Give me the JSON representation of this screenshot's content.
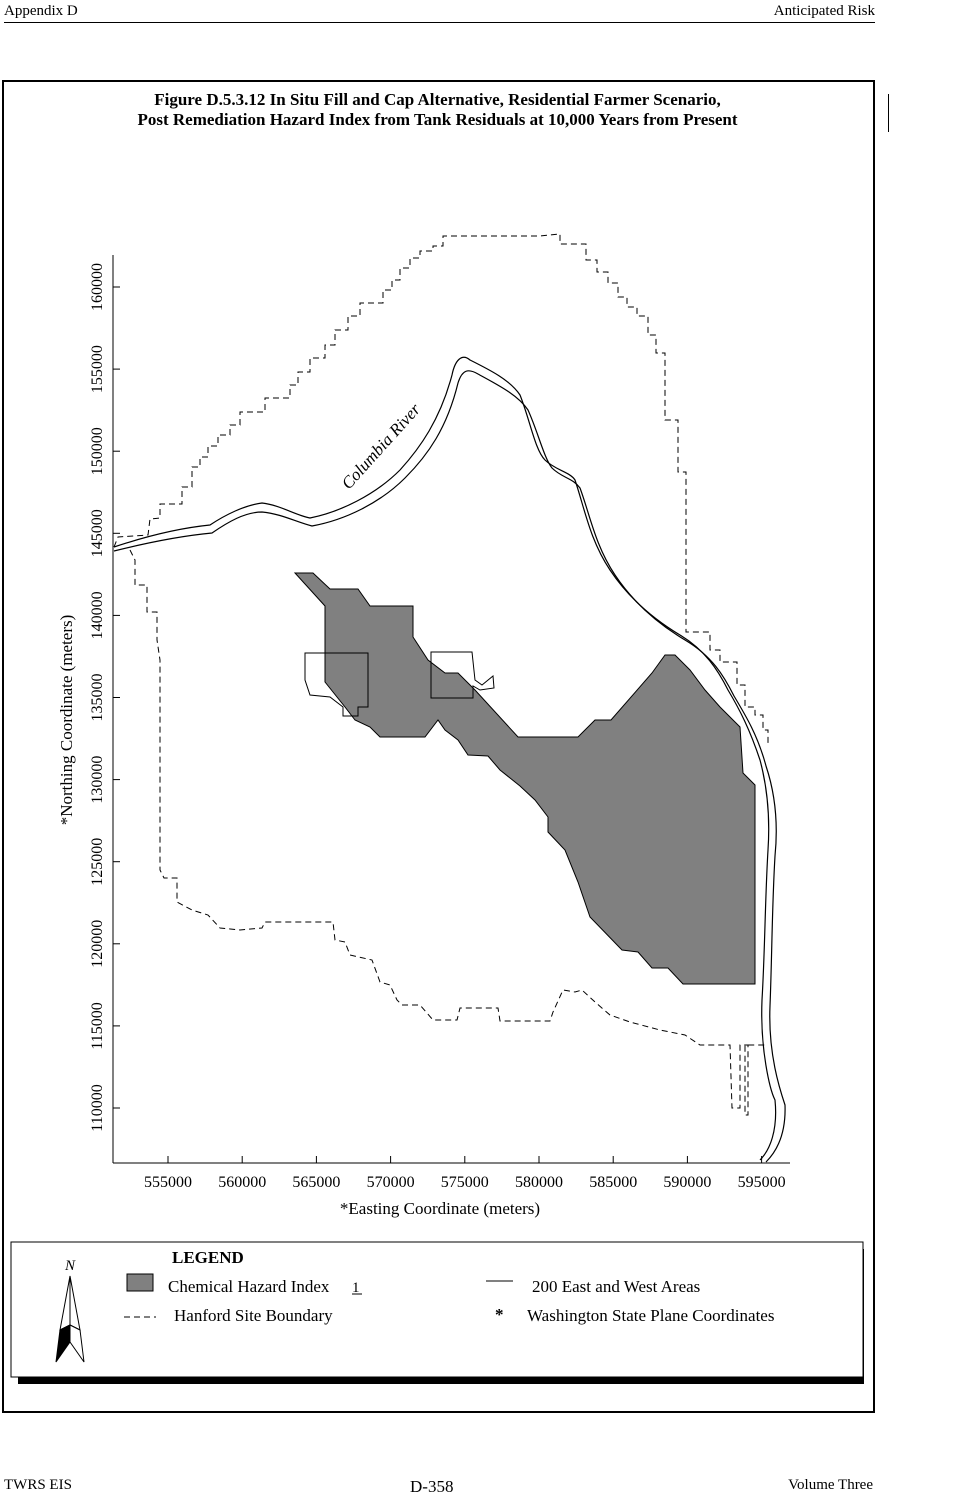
{
  "header": {
    "left": "Appendix D",
    "right": "Anticipated Risk"
  },
  "figure": {
    "title_line1": "Figure D.5.3.12  In Situ Fill and Cap Alternative, Residential Farmer Scenario,",
    "title_line2": "Post Remediation Hazard Index from Tank Residuals at 10,000 Years from Present"
  },
  "map": {
    "river_label": "Columbia River",
    "x_axis": {
      "label": "*Easting Coordinate (meters)",
      "ticks": [
        "555000",
        "560000",
        "565000",
        "570000",
        "575000",
        "580000",
        "585000",
        "590000",
        "595000"
      ]
    },
    "y_axis": {
      "label": "*Northing Coordinate (meters)",
      "ticks": [
        "110000",
        "115000",
        "120000",
        "125000",
        "130000",
        "135000",
        "140000",
        "145000",
        "150000",
        "155000",
        "160000"
      ]
    },
    "colors": {
      "hazard_fill": "#808080",
      "line": "#000000"
    }
  },
  "legend": {
    "title": "LEGEND",
    "north_symbol": "N",
    "items": [
      {
        "symbol": "gray-box",
        "label": "Chemical Hazard Index",
        "suffix": "1"
      },
      {
        "symbol": "solid-line",
        "label": "200 East and West Areas"
      },
      {
        "symbol": "dash-line",
        "label": "Hanford Site Boundary"
      },
      {
        "symbol": "asterisk",
        "marker": "*",
        "label": "Washington State Plane Coordinates"
      }
    ]
  },
  "footer": {
    "left": "TWRS EIS",
    "center": "D-358",
    "right": "Volume Three"
  }
}
